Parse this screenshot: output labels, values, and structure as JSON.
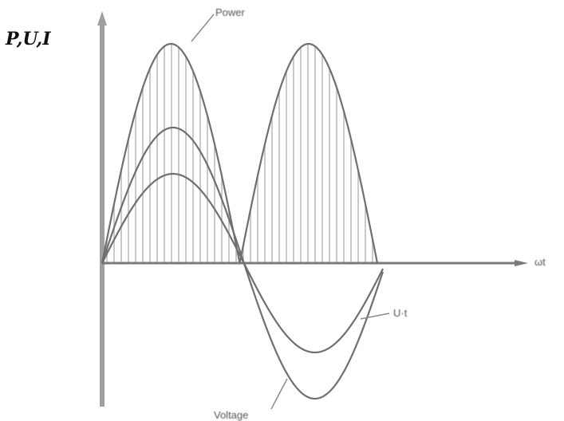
{
  "diagram": {
    "y_axis_label": "P,U,I",
    "x_axis_label": "ωt",
    "curve_labels": {
      "power": "Power",
      "voltage": "U·t",
      "current": "Voltage"
    }
  },
  "colors": {
    "axis": "#a0a0a0",
    "curve": "#6f6f6f",
    "hatch": "#bdbdbd",
    "leader": "#8a8a8a"
  }
}
